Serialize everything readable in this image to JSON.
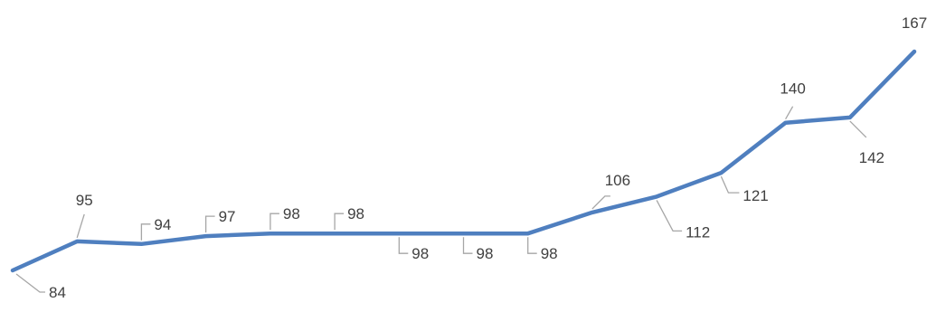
{
  "colors": {
    "series": "#4f7fbf",
    "leader": "#a6a6a6",
    "label": "#404040",
    "background": "#ffffff"
  },
  "chart_data": {
    "type": "line",
    "title": "",
    "xlabel": "",
    "ylabel": "",
    "axes_visible": false,
    "grid": false,
    "legend": "none",
    "x": [
      1,
      2,
      3,
      4,
      5,
      6,
      7,
      8,
      9,
      10,
      11,
      12,
      13,
      14,
      15
    ],
    "ylim": [
      84,
      167
    ],
    "series": [
      {
        "values": [
          84,
          95,
          94,
          97,
          98,
          98,
          98,
          98,
          98,
          106,
          112,
          121,
          140,
          142,
          167
        ],
        "labels": [
          "84",
          "95",
          "94",
          "97",
          "98",
          "98",
          "98",
          "98",
          "98",
          "106",
          "112",
          "121",
          "140",
          "142",
          "167"
        ]
      }
    ]
  }
}
